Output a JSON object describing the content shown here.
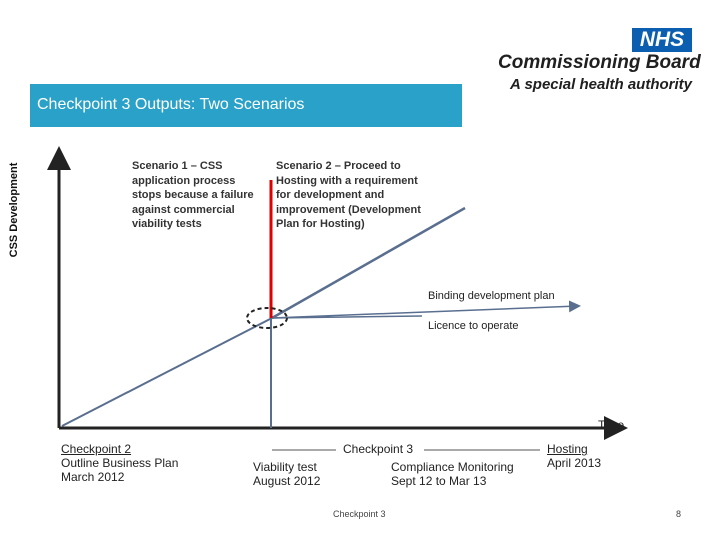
{
  "header": {
    "badge": "NHS",
    "org_name": "Commissioning Board",
    "org_subtitle": "A special health authority"
  },
  "title": "Checkpoint 3 Outputs: Two Scenarios",
  "axes": {
    "y_label": "CSS Development",
    "x_label": "Time"
  },
  "scenarios": {
    "one": "Scenario 1 – CSS application process stops because a failure against commercial viability tests",
    "two": "Scenario 2 – Proceed to Hosting with a requirement for development and improvement (Development Plan for Hosting)"
  },
  "paths": {
    "binding": "Binding development plan",
    "licence": "Licence to operate"
  },
  "timeline": {
    "checkpoint2": {
      "title": "Checkpoint 2",
      "line1": "Outline Business Plan",
      "line2": "March 2012"
    },
    "checkpoint3": {
      "title": "Checkpoint 3",
      "viability_title": "Viability test",
      "viability_date": "August 2012",
      "compliance_title": "Compliance Monitoring",
      "compliance_date": "Sept 12 to Mar 13"
    },
    "hosting": {
      "title": "Hosting",
      "date": "April 2013"
    }
  },
  "footer": {
    "label": "Checkpoint 3",
    "page": "8"
  },
  "colors": {
    "title_bar": "#2aa1c8",
    "nhs_blue": "#0b5eb0",
    "stop_line": "#e00000",
    "path_line": "#5a6f8f"
  }
}
